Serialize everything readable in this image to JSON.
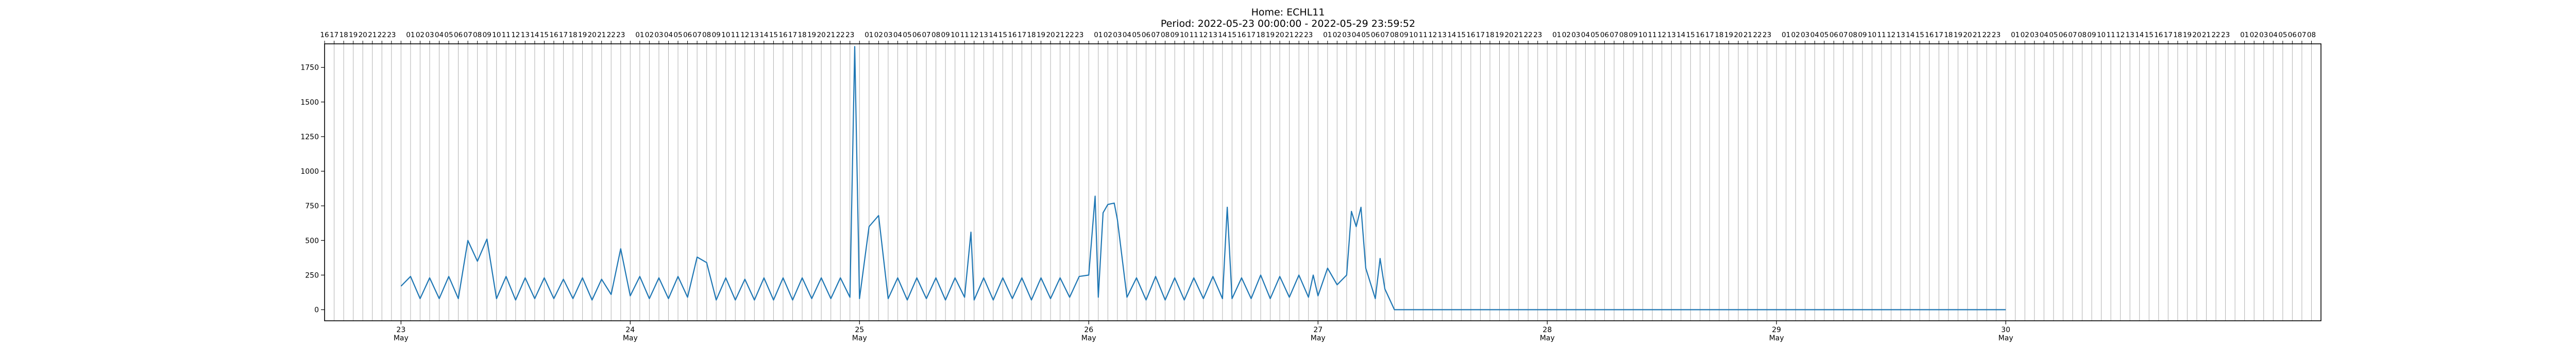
{
  "chart_data": {
    "type": "line",
    "title": "Home: ECHL11",
    "subtitle": "Period: 2022-05-23 00:00:00 - 2022-05-29 23:59:52",
    "xlabel": "",
    "ylabel": "",
    "ylim": [
      -80,
      1920
    ],
    "yticks": [
      0,
      250,
      500,
      750,
      1000,
      1250,
      1500,
      1750
    ],
    "xlim": [
      "2022-05-22 16:00",
      "2022-05-31 09:00"
    ],
    "x_major_ticks": [
      {
        "day": "23",
        "month": "May",
        "date": "2022-05-23"
      },
      {
        "day": "24",
        "month": "May",
        "date": "2022-05-24"
      },
      {
        "day": "25",
        "month": "May",
        "date": "2022-05-25"
      },
      {
        "day": "26",
        "month": "May",
        "date": "2022-05-26"
      },
      {
        "day": "27",
        "month": "May",
        "date": "2022-05-27"
      },
      {
        "day": "28",
        "month": "May",
        "date": "2022-05-28"
      },
      {
        "day": "29",
        "month": "May",
        "date": "2022-05-29"
      },
      {
        "day": "30",
        "month": "May",
        "date": "2022-05-30"
      }
    ],
    "top_hour_labels": [
      "16",
      "17",
      "18",
      "19",
      "20",
      "21",
      "22",
      "23",
      "00",
      "01",
      "02",
      "03",
      "04",
      "05",
      "06",
      "07",
      "08",
      "09",
      "10",
      "11",
      "12",
      "13",
      "14",
      "15",
      "16",
      "17",
      "18",
      "19",
      "20",
      "21",
      "22",
      "23",
      "00",
      "01",
      "02",
      "03",
      "04",
      "05",
      "06",
      "07",
      "08",
      "09",
      "10",
      "11",
      "12",
      "13",
      "14",
      "15",
      "16",
      "17",
      "18",
      "19",
      "20",
      "21",
      "22",
      "23",
      "00",
      "01",
      "02",
      "03",
      "04",
      "05",
      "06",
      "07",
      "08",
      "09",
      "10",
      "11",
      "12",
      "13",
      "14",
      "15",
      "16",
      "17",
      "18",
      "19",
      "20",
      "21",
      "22",
      "23",
      "00",
      "01",
      "02",
      "03",
      "04",
      "05",
      "06",
      "07",
      "08",
      "09",
      "10",
      "11",
      "12",
      "13",
      "14",
      "15",
      "16",
      "17",
      "18",
      "19",
      "20",
      "21",
      "22",
      "23",
      "00",
      "01",
      "02",
      "03",
      "04",
      "05",
      "06",
      "07",
      "08",
      "09",
      "10",
      "11",
      "12",
      "13",
      "14",
      "15",
      "16",
      "17",
      "18",
      "19",
      "20",
      "21",
      "22",
      "23",
      "00",
      "01",
      "02",
      "03",
      "04",
      "05",
      "06",
      "07",
      "08",
      "09",
      "10",
      "11",
      "12",
      "13",
      "14",
      "15",
      "16",
      "17",
      "18",
      "19",
      "20",
      "21",
      "22",
      "23",
      "00",
      "01",
      "02",
      "03",
      "04",
      "05",
      "06",
      "07",
      "08",
      "09",
      "10",
      "11",
      "12",
      "13",
      "14",
      "15",
      "16",
      "17",
      "18",
      "19",
      "20",
      "21",
      "22",
      "23",
      "00",
      "01",
      "02",
      "03",
      "04",
      "05",
      "06",
      "07",
      "08",
      "09",
      "10",
      "11",
      "12",
      "13",
      "14",
      "15",
      "16",
      "17",
      "18",
      "19",
      "20",
      "21",
      "22",
      "23",
      "00",
      "01",
      "02",
      "03",
      "04",
      "05",
      "06",
      "07",
      "08"
    ],
    "grid": "vertical-hourly",
    "series": [
      {
        "color": "#1f77b4",
        "points": [
          [
            "2022-05-23 00:00",
            170
          ],
          [
            "2022-05-23 01:00",
            240
          ],
          [
            "2022-05-23 02:00",
            80
          ],
          [
            "2022-05-23 03:00",
            230
          ],
          [
            "2022-05-23 04:00",
            80
          ],
          [
            "2022-05-23 05:00",
            240
          ],
          [
            "2022-05-23 06:00",
            80
          ],
          [
            "2022-05-23 07:00",
            500
          ],
          [
            "2022-05-23 08:00",
            350
          ],
          [
            "2022-05-23 09:00",
            510
          ],
          [
            "2022-05-23 10:00",
            80
          ],
          [
            "2022-05-23 11:00",
            240
          ],
          [
            "2022-05-23 12:00",
            70
          ],
          [
            "2022-05-23 13:00",
            230
          ],
          [
            "2022-05-23 14:00",
            80
          ],
          [
            "2022-05-23 15:00",
            230
          ],
          [
            "2022-05-23 16:00",
            80
          ],
          [
            "2022-05-23 17:00",
            220
          ],
          [
            "2022-05-23 18:00",
            80
          ],
          [
            "2022-05-23 19:00",
            230
          ],
          [
            "2022-05-23 20:00",
            70
          ],
          [
            "2022-05-23 21:00",
            220
          ],
          [
            "2022-05-23 22:00",
            110
          ],
          [
            "2022-05-23 23:00",
            440
          ],
          [
            "2022-05-24 00:00",
            100
          ],
          [
            "2022-05-24 01:00",
            240
          ],
          [
            "2022-05-24 02:00",
            80
          ],
          [
            "2022-05-24 03:00",
            230
          ],
          [
            "2022-05-24 04:00",
            80
          ],
          [
            "2022-05-24 05:00",
            240
          ],
          [
            "2022-05-24 06:00",
            90
          ],
          [
            "2022-05-24 07:00",
            380
          ],
          [
            "2022-05-24 08:00",
            340
          ],
          [
            "2022-05-24 09:00",
            70
          ],
          [
            "2022-05-24 10:00",
            230
          ],
          [
            "2022-05-24 11:00",
            70
          ],
          [
            "2022-05-24 12:00",
            220
          ],
          [
            "2022-05-24 13:00",
            70
          ],
          [
            "2022-05-24 14:00",
            230
          ],
          [
            "2022-05-24 15:00",
            70
          ],
          [
            "2022-05-24 16:00",
            230
          ],
          [
            "2022-05-24 17:00",
            70
          ],
          [
            "2022-05-24 18:00",
            230
          ],
          [
            "2022-05-24 19:00",
            80
          ],
          [
            "2022-05-24 20:00",
            230
          ],
          [
            "2022-05-24 21:00",
            80
          ],
          [
            "2022-05-24 22:00",
            230
          ],
          [
            "2022-05-24 23:00",
            90
          ],
          [
            "2022-05-24 23:30",
            1900
          ],
          [
            "2022-05-25 00:00",
            80
          ],
          [
            "2022-05-25 01:00",
            600
          ],
          [
            "2022-05-25 02:00",
            680
          ],
          [
            "2022-05-25 03:00",
            80
          ],
          [
            "2022-05-25 04:00",
            230
          ],
          [
            "2022-05-25 05:00",
            70
          ],
          [
            "2022-05-25 06:00",
            230
          ],
          [
            "2022-05-25 07:00",
            80
          ],
          [
            "2022-05-25 08:00",
            230
          ],
          [
            "2022-05-25 09:00",
            70
          ],
          [
            "2022-05-25 10:00",
            230
          ],
          [
            "2022-05-25 11:00",
            90
          ],
          [
            "2022-05-25 11:40",
            560
          ],
          [
            "2022-05-25 12:00",
            70
          ],
          [
            "2022-05-25 13:00",
            230
          ],
          [
            "2022-05-25 14:00",
            70
          ],
          [
            "2022-05-25 15:00",
            230
          ],
          [
            "2022-05-25 16:00",
            80
          ],
          [
            "2022-05-25 17:00",
            230
          ],
          [
            "2022-05-25 18:00",
            70
          ],
          [
            "2022-05-25 19:00",
            230
          ],
          [
            "2022-05-25 20:00",
            80
          ],
          [
            "2022-05-25 21:00",
            230
          ],
          [
            "2022-05-25 22:00",
            90
          ],
          [
            "2022-05-25 23:00",
            240
          ],
          [
            "2022-05-26 00:00",
            250
          ],
          [
            "2022-05-26 00:40",
            820
          ],
          [
            "2022-05-26 01:00",
            90
          ],
          [
            "2022-05-26 01:30",
            700
          ],
          [
            "2022-05-26 02:00",
            760
          ],
          [
            "2022-05-26 02:40",
            770
          ],
          [
            "2022-05-26 03:00",
            650
          ],
          [
            "2022-05-26 04:00",
            90
          ],
          [
            "2022-05-26 05:00",
            230
          ],
          [
            "2022-05-26 06:00",
            70
          ],
          [
            "2022-05-26 07:00",
            240
          ],
          [
            "2022-05-26 08:00",
            70
          ],
          [
            "2022-05-26 09:00",
            230
          ],
          [
            "2022-05-26 10:00",
            70
          ],
          [
            "2022-05-26 11:00",
            230
          ],
          [
            "2022-05-26 12:00",
            80
          ],
          [
            "2022-05-26 13:00",
            240
          ],
          [
            "2022-05-26 14:00",
            80
          ],
          [
            "2022-05-26 14:30",
            740
          ],
          [
            "2022-05-26 15:00",
            80
          ],
          [
            "2022-05-26 16:00",
            230
          ],
          [
            "2022-05-26 17:00",
            80
          ],
          [
            "2022-05-26 18:00",
            250
          ],
          [
            "2022-05-26 19:00",
            80
          ],
          [
            "2022-05-26 20:00",
            240
          ],
          [
            "2022-05-26 21:00",
            90
          ],
          [
            "2022-05-26 22:00",
            250
          ],
          [
            "2022-05-26 23:00",
            90
          ],
          [
            "2022-05-26 23:30",
            250
          ],
          [
            "2022-05-27 00:00",
            100
          ],
          [
            "2022-05-27 01:00",
            300
          ],
          [
            "2022-05-27 02:00",
            180
          ],
          [
            "2022-05-27 03:00",
            250
          ],
          [
            "2022-05-27 03:30",
            710
          ],
          [
            "2022-05-27 04:00",
            600
          ],
          [
            "2022-05-27 04:30",
            740
          ],
          [
            "2022-05-27 05:00",
            300
          ],
          [
            "2022-05-27 06:00",
            80
          ],
          [
            "2022-05-27 06:30",
            370
          ],
          [
            "2022-05-27 07:00",
            150
          ],
          [
            "2022-05-27 08:00",
            0
          ],
          [
            "2022-05-30 00:00",
            0
          ]
        ]
      }
    ]
  }
}
